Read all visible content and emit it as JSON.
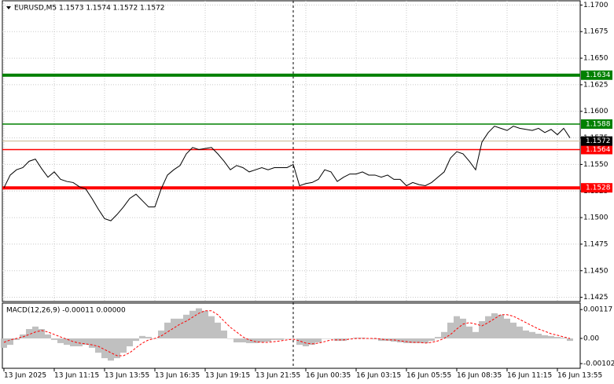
{
  "chart_data": [
    {
      "type": "line",
      "title": "EURUSD,M5  1.1573 1.1574 1.1572 1.1572",
      "categories": [
        "13 Jun 2025",
        null,
        null,
        null,
        null,
        null,
        null,
        null,
        "13 Jun 11:15",
        null,
        null,
        null,
        null,
        null,
        null,
        null,
        "13 Jun 13:55",
        null,
        null,
        null,
        null,
        null,
        null,
        null,
        "13 Jun 16:35",
        null,
        null,
        null,
        null,
        null,
        null,
        null,
        "13 Jun 19:15",
        null,
        null,
        null,
        null,
        null,
        null,
        null,
        "13 Jun 21:55",
        null,
        null,
        null,
        null,
        null,
        null,
        null,
        "16 Jun 00:35",
        null,
        null,
        null,
        null,
        null,
        null,
        null,
        "16 Jun 03:15",
        null,
        null,
        null,
        null,
        null,
        null,
        null,
        "16 Jun 05:55",
        null,
        null,
        null,
        null,
        null,
        null,
        null,
        "16 Jun 08:35",
        null,
        null,
        null,
        null,
        null,
        null,
        null,
        "16 Jun 11:15",
        null,
        null,
        null,
        null,
        null,
        null,
        null,
        "16 Jun 13:55",
        null,
        null
      ],
      "values": [
        1.1528,
        1.154,
        1.1545,
        1.1547,
        1.1553,
        1.1555,
        1.1546,
        1.1538,
        1.1543,
        1.1536,
        1.1534,
        1.1533,
        1.1529,
        1.1527,
        1.1518,
        1.1508,
        1.1499,
        1.1497,
        1.1503,
        1.151,
        1.1518,
        1.1522,
        1.1516,
        1.151,
        1.151,
        1.1527,
        1.154,
        1.1545,
        1.1549,
        1.156,
        1.1566,
        1.1564,
        1.1565,
        1.1566,
        1.156,
        1.1553,
        1.1545,
        1.1549,
        1.1547,
        1.1543,
        1.1545,
        1.1547,
        1.1545,
        1.1547,
        1.1547,
        1.1547,
        1.155,
        1.153,
        1.1532,
        1.1533,
        1.1536,
        1.1545,
        1.1543,
        1.1534,
        1.1538,
        1.1541,
        1.1541,
        1.1543,
        1.154,
        1.154,
        1.1538,
        1.154,
        1.1536,
        1.1536,
        1.153,
        1.1533,
        1.1531,
        1.153,
        1.1533,
        1.1538,
        1.1543,
        1.1556,
        1.1562,
        1.156,
        1.1553,
        1.1545,
        1.1571,
        1.158,
        1.1586,
        1.1584,
        1.1582,
        1.1586,
        1.1584,
        1.1583,
        1.1582,
        1.1584,
        1.158,
        1.1583,
        1.1578,
        1.1584,
        1.1575
      ],
      "color": "#000000",
      "ylim": [
        1.1421,
        1.1704
      ],
      "yticks": [
        {
          "value": 1.17,
          "label": "1.1700"
        },
        1.1675,
        {
          "value": 1.165,
          "label": "1.1650"
        },
        1.1625,
        {
          "value": 1.16,
          "label": "1.1600"
        },
        1.1575,
        {
          "value": 1.155,
          "label": "1.1550"
        },
        1.1525,
        {
          "value": 1.15,
          "label": "1.1500"
        },
        1.1475,
        {
          "value": 1.145,
          "label": "1.1450"
        },
        1.1425
      ],
      "levels": [
        {
          "value": 1.1634,
          "color": "#008000",
          "weight": "bold"
        },
        {
          "value": 1.1588,
          "color": "#008000",
          "weight": "normal"
        },
        {
          "value": 1.1564,
          "color": "#ff0000",
          "weight": "normal"
        },
        {
          "value": 1.1528,
          "color": "#ff0000",
          "weight": "bold"
        }
      ],
      "last_price": 1.1572,
      "grid": true
    },
    {
      "type": "macd",
      "title": "MACD(12,26,9) -0.00011 0.00000",
      "values": [
        -0.00038,
        -0.00026,
        -6e-05,
        0.00016,
        0.00038,
        0.00048,
        0.00038,
        0.00016,
        -6e-05,
        -0.00019,
        -0.00026,
        -0.00032,
        -0.00032,
        -0.00026,
        -0.00038,
        -0.00058,
        -0.0008,
        -0.0009,
        -0.0008,
        -0.00058,
        -0.00032,
        -0.0001,
        0.0001,
        6e-05,
        0,
        0.00032,
        0.00064,
        0.0008,
        0.0008,
        0.00096,
        0.00112,
        0.00122,
        0.00112,
        0.0009,
        0.00064,
        0.00032,
        0,
        -0.00016,
        -0.00016,
        -0.00019,
        -0.00019,
        -0.00016,
        -0.00013,
        -6e-05,
        -6e-05,
        0,
        0,
        -0.00026,
        -0.00032,
        -0.00026,
        -0.00016,
        0,
        0,
        -0.0001,
        -0.0001,
        0,
        3e-05,
        3e-05,
        0,
        -3e-05,
        -0.0001,
        -0.0001,
        -0.00013,
        -0.00016,
        -0.00019,
        -0.00019,
        -0.00019,
        -0.00019,
        -0.0001,
        6e-05,
        0.00026,
        0.00064,
        0.0009,
        0.0008,
        0.00048,
        0.00026,
        0.0007,
        0.0009,
        0.00102,
        0.00096,
        0.0008,
        0.00064,
        0.00048,
        0.00032,
        0.00026,
        0.00019,
        0.00013,
        0.0001,
        6e-05,
        3e-05,
        -0.0001
      ],
      "signal": [
        -0.00016,
        -6e-05,
        0,
        6e-05,
        0.00016,
        0.00026,
        0.00032,
        0.00026,
        0.00016,
        6e-05,
        -3e-05,
        -0.00013,
        -0.00019,
        -0.00022,
        -0.00026,
        -0.00032,
        -0.00045,
        -0.00058,
        -0.0007,
        -0.0007,
        -0.00058,
        -0.00038,
        -0.00019,
        -6e-05,
        0,
        0.0001,
        0.00026,
        0.00042,
        0.00058,
        0.0007,
        0.00086,
        0.00102,
        0.00112,
        0.00112,
        0.00096,
        0.0007,
        0.00045,
        0.00026,
        6e-05,
        -6e-05,
        -0.00013,
        -0.00016,
        -0.00016,
        -0.00013,
        -0.0001,
        -6e-05,
        -3e-05,
        -0.0001,
        -0.00019,
        -0.00022,
        -0.00019,
        -0.00013,
        -6e-05,
        -6e-05,
        -6e-05,
        -3e-05,
        0,
        0,
        0,
        0,
        -3e-05,
        -6e-05,
        -6e-05,
        -0.0001,
        -0.00013,
        -0.00016,
        -0.00016,
        -0.00019,
        -0.00016,
        -0.0001,
        0,
        0.00016,
        0.00038,
        0.00058,
        0.00064,
        0.00058,
        0.00051,
        0.00064,
        0.0008,
        0.00096,
        0.00096,
        0.0009,
        0.00077,
        0.00064,
        0.00051,
        0.00038,
        0.00029,
        0.00019,
        0.00013,
        6e-05,
        0
      ],
      "color": "#c0c0c0",
      "signal_color": "#ff0000",
      "ylim": [
        -0.00121,
        0.00143
      ],
      "yticks": [
        0.00117,
        {
          "value": 0,
          "label": "0.00"
        },
        -0.00102
      ]
    }
  ]
}
